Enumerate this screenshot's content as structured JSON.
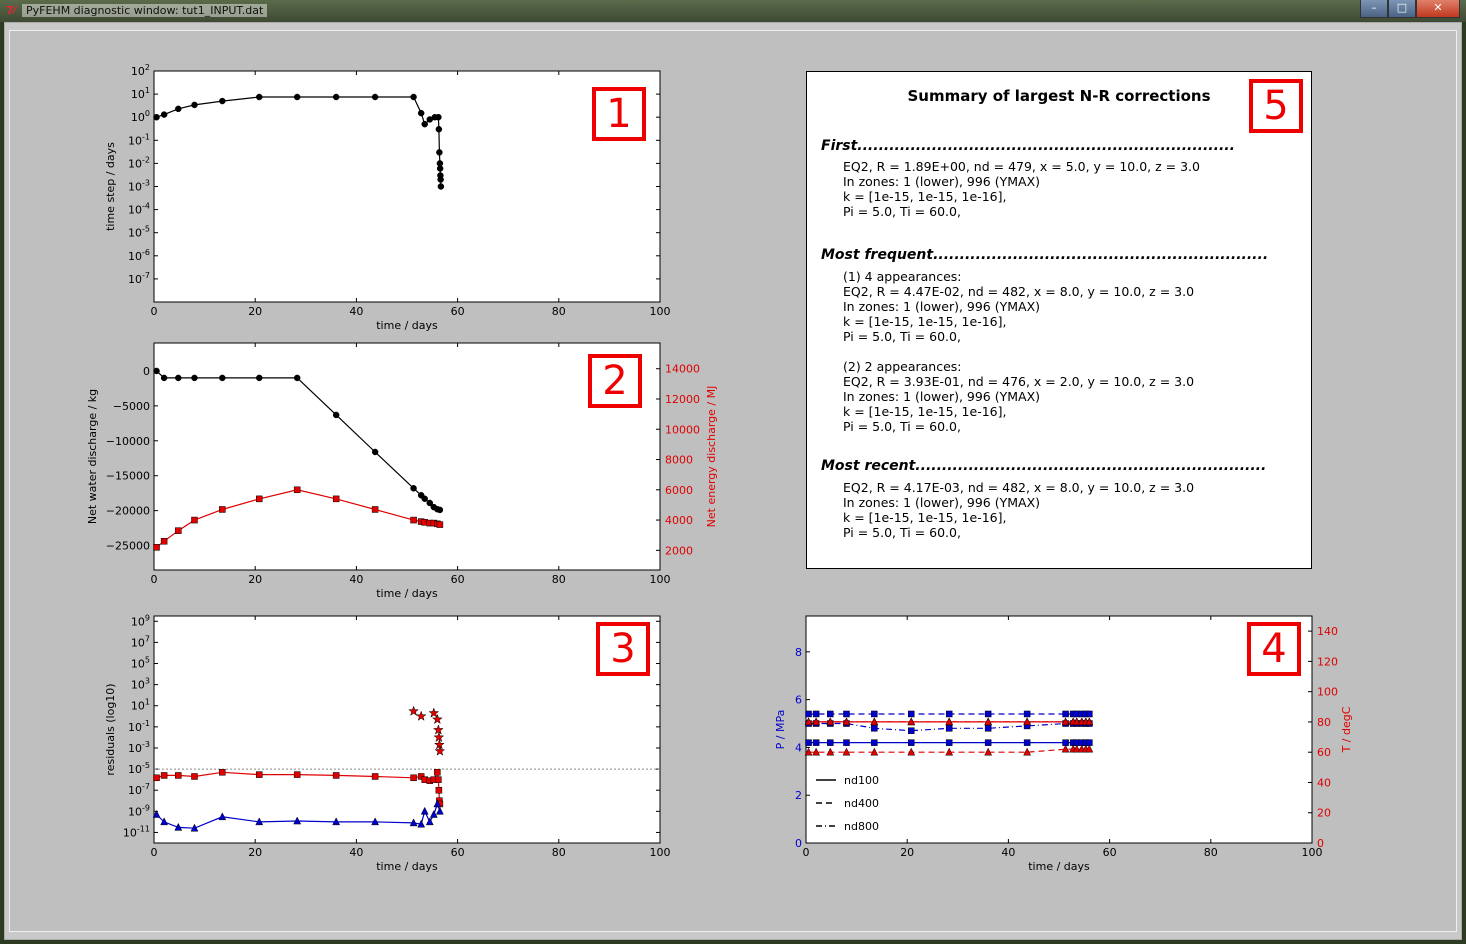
{
  "window": {
    "title": "PyFEHM diagnostic window: tut1_INPUT.dat",
    "icon": "tk-feather-icon",
    "buttons": [
      "minimize",
      "maximize",
      "close"
    ]
  },
  "colors": {
    "red": "#e00000",
    "blue": "#0000cc",
    "background": "#bfbfbf"
  },
  "panel_numbers": [
    "1",
    "2",
    "3",
    "4",
    "5"
  ],
  "summary": {
    "title": "Summary of largest N-R corrections",
    "first": {
      "heading": "First.......................................................................",
      "lines": [
        "EQ2, R = 1.89E+00, nd = 479, x = 5.0, y = 10.0, z = 3.0",
        "In zones: 1 (lower), 996 (YMAX)",
        "k = [1e-15, 1e-15, 1e-16],",
        "Pi = 5.0, Ti = 60.0,"
      ]
    },
    "frequent": {
      "heading": "Most frequent...............................................................",
      "lines": [
        "(1) 4 appearances:",
        "EQ2, R = 4.47E-02, nd = 482, x = 8.0, y = 10.0, z = 3.0",
        "In zones: 1 (lower), 996 (YMAX)",
        "k = [1e-15, 1e-15, 1e-16],",
        "Pi = 5.0, Ti = 60.0,",
        "",
        "(2) 2 appearances:",
        "EQ2, R = 3.93E-01, nd = 476, x = 2.0, y = 10.0, z = 3.0",
        "In zones: 1 (lower), 996 (YMAX)",
        "k = [1e-15, 1e-15, 1e-16],",
        "Pi = 5.0, Ti = 60.0,"
      ]
    },
    "recent": {
      "heading": "Most recent..................................................................",
      "lines": [
        "EQ2, R = 4.17E-03, nd = 482, x = 8.0, y = 10.0, z = 3.0",
        "In zones: 1 (lower), 996 (YMAX)",
        "k = [1e-15, 1e-15, 1e-16],",
        "Pi = 5.0, Ti = 60.0,"
      ]
    }
  },
  "chart_data": [
    {
      "type": "line",
      "xlabel": "time / days",
      "ylabel": "time step / days",
      "xlim": [
        0,
        100
      ],
      "yscale": "log",
      "ylim_exp": [
        -8,
        2
      ],
      "x_ticks": [
        "0",
        "20",
        "40",
        "60",
        "80",
        "100"
      ],
      "y_ticks": [
        "10-7",
        "10-6",
        "10-5",
        "10-4",
        "10-3",
        "10-2",
        "10-1",
        "100",
        "101",
        "102"
      ],
      "series": [
        {
          "color": "#000000",
          "marker": "circle",
          "x": [
            0.5,
            2,
            4.8,
            8,
            13.5,
            20.8,
            28.3,
            36,
            43.7,
            51.3,
            52.8,
            53.5,
            54.5,
            55.5,
            56.2,
            56.3,
            56.4,
            56.5,
            56.55,
            56.6,
            56.65,
            56.7
          ],
          "y": [
            1.0,
            1.3,
            2.3,
            3.4,
            5.0,
            7.5,
            7.5,
            7.5,
            7.5,
            7.5,
            1.5,
            0.5,
            0.8,
            1.0,
            1.0,
            0.3,
            0.03,
            0.01,
            0.006,
            0.003,
            0.002,
            0.001
          ]
        }
      ]
    },
    {
      "type": "line",
      "xlabel": "time / days",
      "ylabel": "Net water discharge / kg",
      "y2label": "Net energy discharge / MJ",
      "xlim": [
        0,
        100
      ],
      "ylim": [
        -28500,
        4000
      ],
      "y2lim": [
        700,
        15700
      ],
      "x_ticks": [
        "0",
        "20",
        "40",
        "60",
        "80",
        "100"
      ],
      "y_ticks": [
        "0",
        "−5000",
        "−10000",
        "−15000",
        "−20000",
        "−25000"
      ],
      "y2_ticks": [
        "2000",
        "4000",
        "6000",
        "8000",
        "10000",
        "12000",
        "14000"
      ],
      "series": [
        {
          "axis": "left",
          "color": "#000000",
          "marker": "circle",
          "x": [
            0.5,
            2,
            4.8,
            8,
            13.5,
            20.8,
            28.3,
            36,
            43.7,
            51.3,
            52.8,
            53.5,
            54.5,
            55.3,
            56,
            56.5
          ],
          "y": [
            0,
            -1000,
            -1000,
            -1000,
            -1000,
            -1000,
            -1000,
            -6300,
            -11600,
            -16800,
            -17800,
            -18300,
            -18900,
            -19500,
            -19800,
            -19900
          ]
        },
        {
          "axis": "right",
          "color": "#e00000",
          "marker": "square",
          "x": [
            0.5,
            2,
            4.8,
            8,
            13.5,
            20.8,
            28.3,
            36,
            43.7,
            51.3,
            52.8,
            53.5,
            54.5,
            55.3,
            56,
            56.5
          ],
          "y": [
            2200,
            2600,
            3300,
            4000,
            4700,
            5400,
            6000,
            5400,
            4700,
            4000,
            3900,
            3850,
            3800,
            3800,
            3750,
            3700
          ]
        }
      ]
    },
    {
      "type": "line",
      "xlabel": "time / days",
      "ylabel": "residuals (log10)",
      "xlim": [
        0,
        100
      ],
      "yscale": "log",
      "ylim_exp": [
        -12,
        9.5
      ],
      "x_ticks": [
        "0",
        "20",
        "40",
        "60",
        "80",
        "100"
      ],
      "y_ticks": [
        "10-11",
        "10-9",
        "10-7",
        "10-5",
        "10-3",
        "10-1",
        "101",
        "103",
        "105",
        "107",
        "109"
      ],
      "threshold": 1e-05,
      "series": [
        {
          "color": "#e00000",
          "marker": "square",
          "x": [
            0.5,
            2,
            4.8,
            8,
            13.5,
            20.8,
            28.3,
            36,
            43.7,
            51.3,
            52.8,
            53.5,
            54.5,
            55.3,
            56,
            56.2,
            56.3,
            56.4,
            56.5
          ],
          "y": [
            1.5e-06,
            2.5e-06,
            2.5e-06,
            2e-06,
            5e-06,
            3e-06,
            3e-06,
            2.5e-06,
            2e-06,
            1.5e-06,
            2e-06,
            1e-06,
            8e-07,
            1e-06,
            5e-06,
            1e-06,
            1e-07,
            1e-08,
            5e-09
          ]
        },
        {
          "color": "#0000cc",
          "marker": "triangle",
          "x": [
            0.5,
            2,
            4.8,
            8,
            13.5,
            20.8,
            28.3,
            36,
            43.7,
            51.3,
            52.8,
            53.5,
            54.5,
            55.3,
            56,
            56.5
          ],
          "y": [
            5e-10,
            1e-10,
            3e-11,
            2.5e-11,
            3e-10,
            1e-10,
            1.2e-10,
            1e-10,
            1e-10,
            8e-11,
            6e-11,
            1e-09,
            1e-10,
            5e-10,
            5e-09,
            1e-09
          ]
        },
        {
          "color": "#e00000",
          "marker": "star",
          "x": [
            51.3,
            52.8,
            55.3,
            56,
            56.2,
            56.3,
            56.4,
            56.5
          ],
          "y": [
            3,
            1,
            2,
            0.5,
            0.05,
            0.01,
            0.002,
            0.0005
          ]
        }
      ]
    },
    {
      "type": "line",
      "xlabel": "time / days",
      "ylabel": "P / MPa",
      "y2label": "T / degC",
      "xlim": [
        0,
        100
      ],
      "ylim": [
        0,
        9.5
      ],
      "y2lim": [
        0,
        150
      ],
      "x_ticks": [
        "0",
        "20",
        "40",
        "60",
        "80",
        "100"
      ],
      "y_ticks": [
        "0",
        "2",
        "4",
        "6",
        "8"
      ],
      "y2_ticks": [
        "0",
        "20",
        "40",
        "60",
        "80",
        "100",
        "120",
        "140"
      ],
      "legend": [
        "nd100",
        "nd400",
        "nd800"
      ],
      "series": [
        {
          "name": "nd100",
          "axis": "left",
          "color": "#0000cc",
          "dash": "solid",
          "marker": "square",
          "x": [
            0.5,
            2,
            4.8,
            8,
            13.5,
            20.8,
            28.3,
            36,
            43.7,
            51.3,
            52.8,
            53.5,
            54.5,
            55.3,
            56
          ],
          "y": [
            4.2,
            4.2,
            4.2,
            4.2,
            4.2,
            4.2,
            4.2,
            4.2,
            4.2,
            4.2,
            4.2,
            4.2,
            4.2,
            4.2,
            4.2
          ]
        },
        {
          "name": "nd400",
          "axis": "left",
          "color": "#0000cc",
          "dash": "dashed",
          "marker": "square",
          "x": [
            0.5,
            2,
            4.8,
            8,
            13.5,
            20.8,
            28.3,
            36,
            43.7,
            51.3,
            52.8,
            53.5,
            54.5,
            55.3,
            56
          ],
          "y": [
            5.4,
            5.4,
            5.4,
            5.4,
            5.4,
            5.4,
            5.4,
            5.4,
            5.4,
            5.4,
            5.4,
            5.4,
            5.4,
            5.4,
            5.4
          ]
        },
        {
          "name": "nd800",
          "axis": "left",
          "color": "#0000cc",
          "dash": "dashdot",
          "marker": "square",
          "x": [
            0.5,
            2,
            4.8,
            8,
            13.5,
            20.8,
            28.3,
            36,
            43.7,
            51.3,
            52.8,
            53.5,
            54.5,
            55.3,
            56
          ],
          "y": [
            5.0,
            5.0,
            5.0,
            5.0,
            4.8,
            4.7,
            4.8,
            4.8,
            4.9,
            5.0,
            5.0,
            5.0,
            5.0,
            5.0,
            5.0
          ]
        },
        {
          "name": "nd100",
          "axis": "right",
          "color": "#e00000",
          "dash": "solid",
          "marker": "triangle",
          "x": [
            0.5,
            2,
            4.8,
            8,
            13.5,
            20.8,
            28.3,
            36,
            43.7,
            51.3,
            52.8,
            53.5,
            54.5,
            55.3,
            56
          ],
          "y": [
            80,
            80,
            80,
            80,
            80,
            80,
            80,
            80,
            80,
            80,
            80,
            80,
            80,
            80,
            80
          ]
        },
        {
          "name": "nd400",
          "axis": "right",
          "color": "#e00000",
          "dash": "dashed",
          "marker": "triangle",
          "x": [
            0.5,
            2,
            4.8,
            8,
            13.5,
            20.8,
            28.3,
            36,
            43.7,
            51.3,
            52.8,
            53.5,
            54.5,
            55.3,
            56
          ],
          "y": [
            60,
            60,
            60,
            60,
            60,
            60,
            60,
            60,
            60,
            62,
            62,
            62,
            62,
            62,
            62
          ]
        },
        {
          "name": "nd800",
          "axis": "right",
          "color": "#e00000",
          "dash": "dashdot",
          "marker": "triangle",
          "x": [
            0.5,
            2,
            4.8,
            8,
            13.5,
            20.8,
            28.3,
            36,
            43.7,
            51.3,
            52.8,
            53.5,
            54.5,
            55.3,
            56
          ],
          "y": [
            80,
            80,
            80,
            80,
            80,
            80,
            80,
            80,
            80,
            80,
            80,
            80,
            80,
            80,
            80
          ]
        }
      ]
    }
  ]
}
